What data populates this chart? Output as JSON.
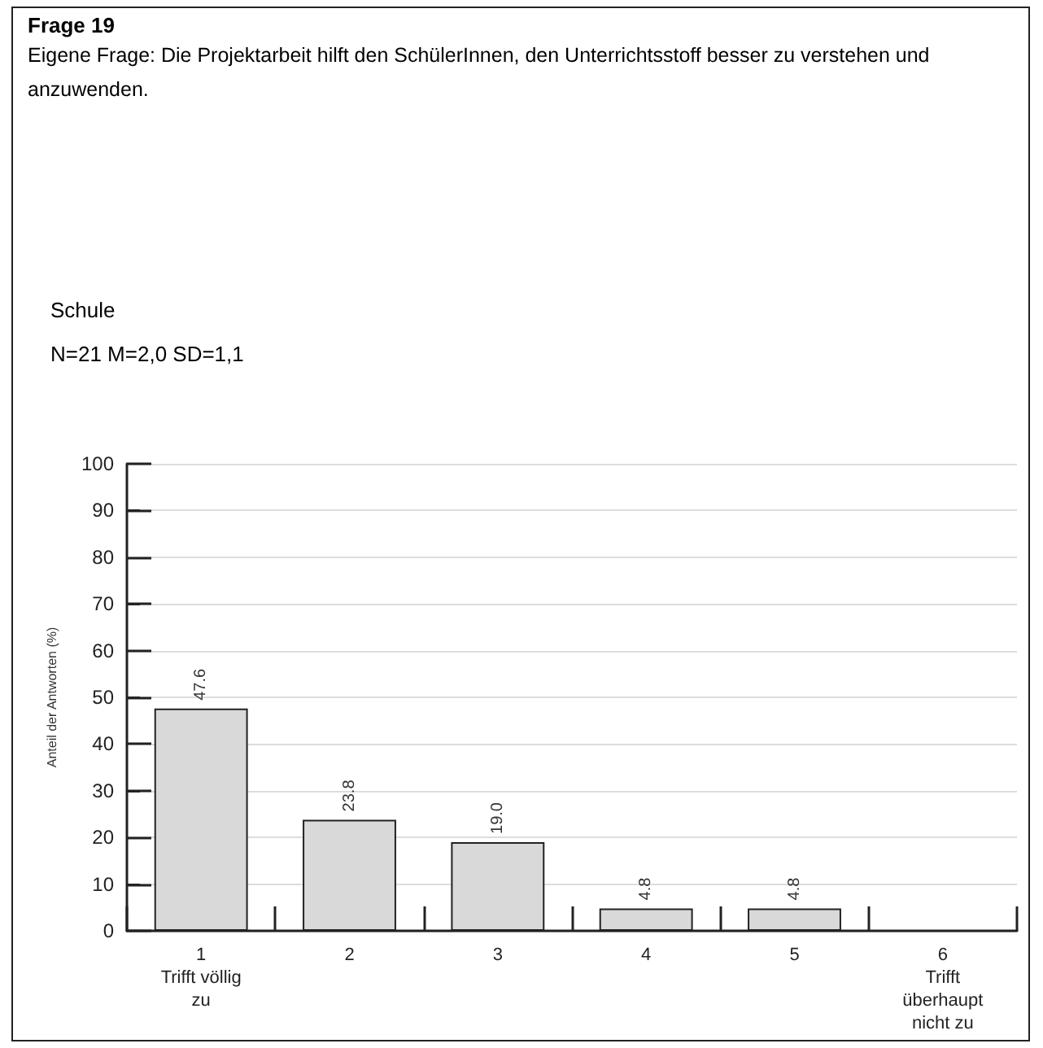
{
  "chart_data": {
    "type": "bar",
    "title": "Frage 19",
    "subtitle": "Eigene Frage: Die Projektarbeit hilft den SchülerInnen, den Unterrichtsstoff besser zu verstehen und anzuwenden.",
    "annotations": [
      "Schule",
      "N=21 M=2,0 SD=1,1"
    ],
    "ylabel": "Anteil der Antworten (%)",
    "categories": [
      "1\nTrifft völlig\nzu",
      "2",
      "3",
      "4",
      "5",
      "6\nTrifft\nüberhaupt\nnicht zu"
    ],
    "values": [
      47.6,
      23.8,
      19.0,
      4.8,
      4.8,
      0
    ],
    "value_labels": [
      "47.6",
      "23.8",
      "19.0",
      "4.8",
      "4.8",
      null
    ],
    "color": "#d9d9d9",
    "ylim": [
      0,
      100
    ],
    "yticks": [
      0,
      10,
      20,
      30,
      40,
      50,
      60,
      70,
      80,
      90,
      100
    ],
    "grid": "y"
  }
}
